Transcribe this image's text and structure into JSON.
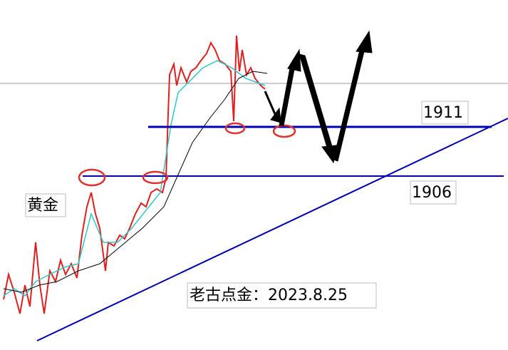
{
  "labels": {
    "asset": "黄金",
    "level_upper": "1911",
    "level_lower": "1906",
    "signature": "老古点金：2023.8.25"
  }
}
